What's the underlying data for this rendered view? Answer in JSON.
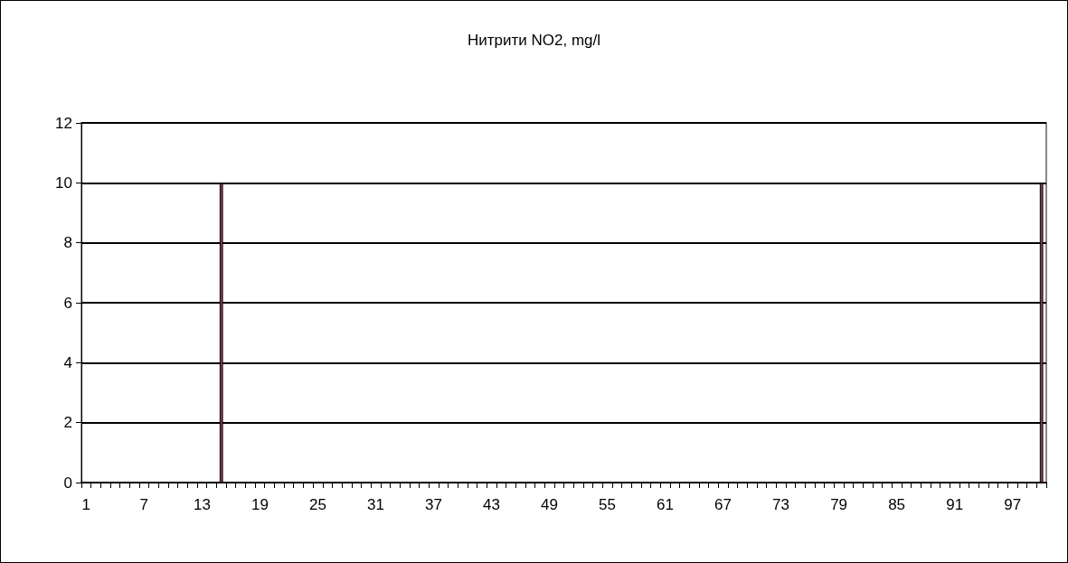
{
  "chart_data": {
    "type": "bar",
    "title": "Нитрити NO2, mg/l",
    "categories": [
      "1",
      null,
      null,
      null,
      null,
      null,
      "7",
      null,
      null,
      null,
      null,
      null,
      "13",
      null,
      null,
      null,
      null,
      null,
      "19",
      null,
      null,
      null,
      null,
      null,
      "25",
      null,
      null,
      null,
      null,
      null,
      "31",
      null,
      null,
      null,
      null,
      null,
      "37",
      null,
      null,
      null,
      null,
      null,
      "43",
      null,
      null,
      null,
      null,
      null,
      "49",
      null,
      null,
      null,
      null,
      null,
      "55",
      null,
      null,
      null,
      null,
      null,
      "61",
      null,
      null,
      null,
      null,
      null,
      "67",
      null,
      null,
      null,
      null,
      null,
      "73",
      null,
      null,
      null,
      null,
      null,
      "79",
      null,
      null,
      null,
      null,
      null,
      "85",
      null,
      null,
      null,
      null,
      null,
      "91",
      null,
      null,
      null,
      null,
      null,
      "97",
      null,
      null,
      null
    ],
    "values": [
      null,
      null,
      null,
      null,
      null,
      null,
      null,
      null,
      null,
      null,
      null,
      null,
      null,
      null,
      10,
      null,
      null,
      null,
      null,
      null,
      null,
      null,
      null,
      null,
      null,
      null,
      null,
      null,
      null,
      null,
      null,
      null,
      null,
      null,
      null,
      null,
      null,
      null,
      null,
      null,
      null,
      null,
      null,
      null,
      null,
      null,
      null,
      null,
      null,
      null,
      null,
      null,
      null,
      null,
      null,
      null,
      null,
      null,
      null,
      null,
      null,
      null,
      null,
      null,
      null,
      null,
      null,
      null,
      null,
      null,
      null,
      null,
      null,
      null,
      null,
      null,
      null,
      null,
      null,
      null,
      null,
      null,
      null,
      null,
      null,
      null,
      null,
      null,
      null,
      null,
      null,
      null,
      null,
      null,
      null,
      null,
      null,
      null,
      null,
      10
    ],
    "color": "#993366",
    "ylim": [
      0,
      12
    ],
    "yticks": [
      0,
      2,
      4,
      6,
      8,
      10,
      12
    ],
    "grid": "y"
  }
}
